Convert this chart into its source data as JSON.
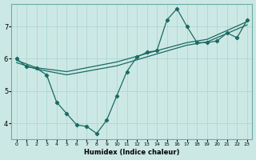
{
  "xlabel": "Humidex (Indice chaleur)",
  "bg_color": "#cce8e5",
  "grid_color": "#a8d4d0",
  "line_color": "#1a6b62",
  "xlim": [
    -0.5,
    23.5
  ],
  "ylim": [
    3.5,
    7.7
  ],
  "yticks": [
    4,
    5,
    6,
    7
  ],
  "xticks": [
    0,
    1,
    2,
    3,
    4,
    5,
    6,
    7,
    8,
    9,
    10,
    11,
    12,
    13,
    14,
    15,
    16,
    17,
    18,
    19,
    20,
    21,
    22,
    23
  ],
  "jagged_x": [
    0,
    1,
    2,
    3,
    4,
    5,
    6,
    7,
    8,
    9,
    10,
    11,
    12,
    13,
    14,
    15,
    16,
    17,
    18,
    19,
    20,
    21,
    22,
    23
  ],
  "jagged_y": [
    6.0,
    5.75,
    5.7,
    5.5,
    4.65,
    4.3,
    3.95,
    3.9,
    3.68,
    4.1,
    4.85,
    5.6,
    6.05,
    6.2,
    6.25,
    7.2,
    7.55,
    7.0,
    6.5,
    6.5,
    6.55,
    6.8,
    6.65,
    7.2
  ],
  "trend1_x": [
    0,
    2,
    5,
    10,
    14,
    17,
    19,
    23
  ],
  "trend1_y": [
    5.95,
    5.72,
    5.6,
    5.9,
    6.25,
    6.5,
    6.6,
    7.15
  ],
  "trend2_x": [
    0,
    2,
    5,
    10,
    14,
    17,
    19,
    23
  ],
  "trend2_y": [
    5.88,
    5.68,
    5.5,
    5.78,
    6.15,
    6.42,
    6.52,
    7.05
  ]
}
